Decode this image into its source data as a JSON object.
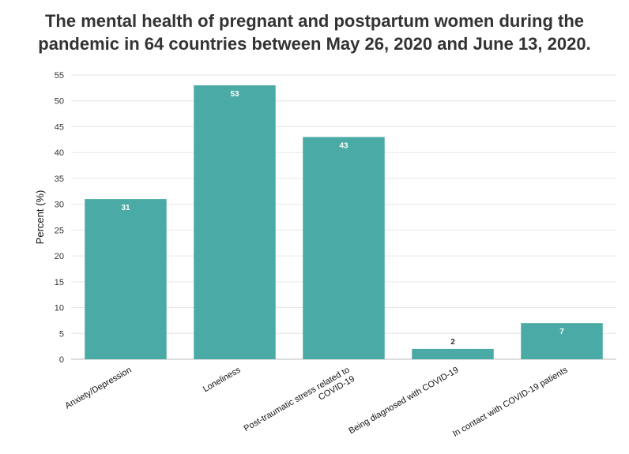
{
  "chart_data": {
    "type": "bar",
    "title_lines": [
      "The mental health of pregnant and postpartum women during the",
      "pandemic in 64 countries between May 26, 2020 and June 13, 2020."
    ],
    "ylabel": "Percent (%)",
    "xlabel": "",
    "categories": [
      [
        "Anxiety/Depression"
      ],
      [
        "Loneliness"
      ],
      [
        "Post-traumatic stress related to",
        "COVID-19"
      ],
      [
        "Being diagnosed with COVID-19"
      ],
      [
        "In contact with COVID-19 patients"
      ]
    ],
    "values": [
      31,
      53,
      43,
      2,
      7
    ],
    "ylim": [
      0,
      55
    ],
    "yticks": [
      0,
      5,
      10,
      15,
      20,
      25,
      30,
      35,
      40,
      45,
      50,
      55
    ],
    "grid": true,
    "legend": "none",
    "bar_color": "#4aaba6",
    "label_color_inside": "#ffffff",
    "label_color_outside": "#333333"
  }
}
